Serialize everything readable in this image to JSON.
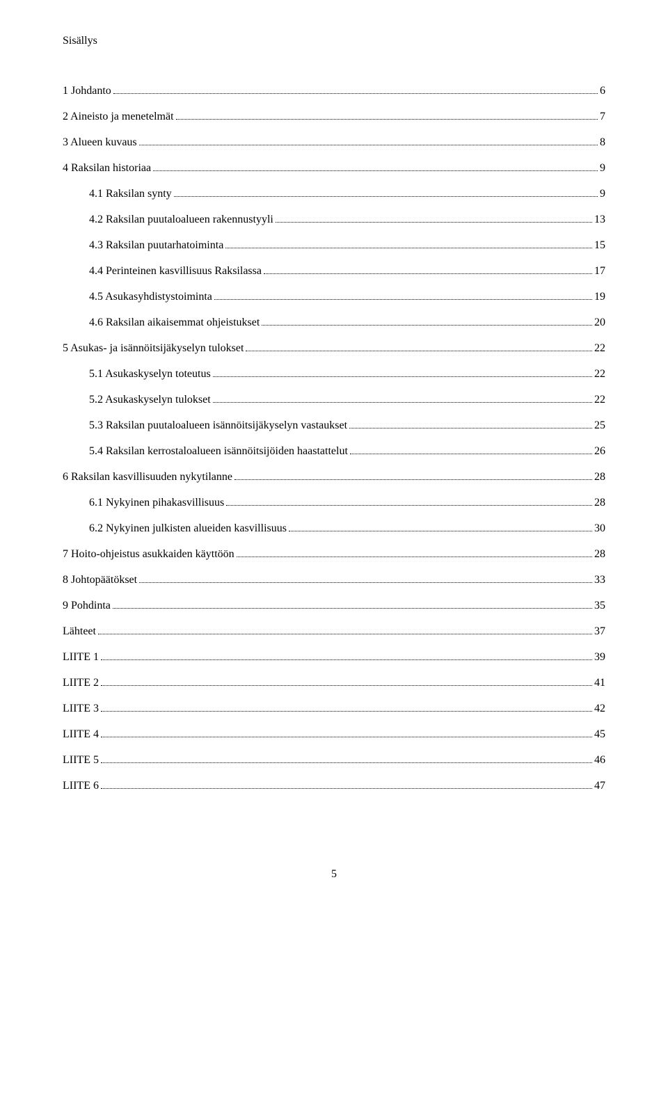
{
  "title": "Sisällys",
  "pageNumber": "5",
  "entries": [
    {
      "label": "1 Johdanto",
      "page": "6",
      "indent": false
    },
    {
      "label": "2 Aineisto ja menetelmät",
      "page": "7",
      "indent": false
    },
    {
      "label": "3 Alueen kuvaus",
      "page": "8",
      "indent": false
    },
    {
      "label": "4 Raksilan historiaa",
      "page": "9",
      "indent": false
    },
    {
      "label": "4.1 Raksilan synty",
      "page": "9",
      "indent": true
    },
    {
      "label": "4.2 Raksilan puutaloalueen rakennustyyli",
      "page": "13",
      "indent": true
    },
    {
      "label": "4.3 Raksilan puutarhatoiminta",
      "page": "15",
      "indent": true
    },
    {
      "label": "4.4 Perinteinen kasvillisuus Raksilassa",
      "page": "17",
      "indent": true
    },
    {
      "label": "4.5 Asukasyhdistystoiminta",
      "page": "19",
      "indent": true
    },
    {
      "label": "4.6 Raksilan aikaisemmat ohjeistukset",
      "page": "20",
      "indent": true
    },
    {
      "label": "5 Asukas-  ja isännöitsijäkyselyn tulokset",
      "page": "22",
      "indent": false
    },
    {
      "label": "5.1 Asukaskyselyn toteutus",
      "page": "22",
      "indent": true
    },
    {
      "label": "5.2 Asukaskyselyn tulokset",
      "page": "22",
      "indent": true
    },
    {
      "label": "5.3 Raksilan puutaloalueen isännöitsijäkyselyn vastaukset",
      "page": "25",
      "indent": true
    },
    {
      "label": "5.4 Raksilan kerrostaloalueen isännöitsijöiden haastattelut",
      "page": "26",
      "indent": true
    },
    {
      "label": "6 Raksilan kasvillisuuden nykytilanne",
      "page": "28",
      "indent": false
    },
    {
      "label": "6.1 Nykyinen pihakasvillisuus",
      "page": "28",
      "indent": true
    },
    {
      "label": "6.2 Nykyinen julkisten alueiden kasvillisuus",
      "page": "30",
      "indent": true
    },
    {
      "label": "7 Hoito-ohjeistus asukkaiden käyttöön",
      "page": "28",
      "indent": false
    },
    {
      "label": "8 Johtopäätökset",
      "page": "33",
      "indent": false
    },
    {
      "label": "9 Pohdinta",
      "page": "35",
      "indent": false
    },
    {
      "label": "Lähteet",
      "page": "37",
      "indent": false
    },
    {
      "label": "LIITE 1",
      "page": "39",
      "indent": false
    },
    {
      "label": "LIITE 2",
      "page": "41",
      "indent": false
    },
    {
      "label": "LIITE 3",
      "page": "42",
      "indent": false
    },
    {
      "label": "LIITE 4",
      "page": "45",
      "indent": false
    },
    {
      "label": "LIITE 5",
      "page": "46",
      "indent": false
    },
    {
      "label": "LIITE 6",
      "page": "47",
      "indent": false
    }
  ]
}
